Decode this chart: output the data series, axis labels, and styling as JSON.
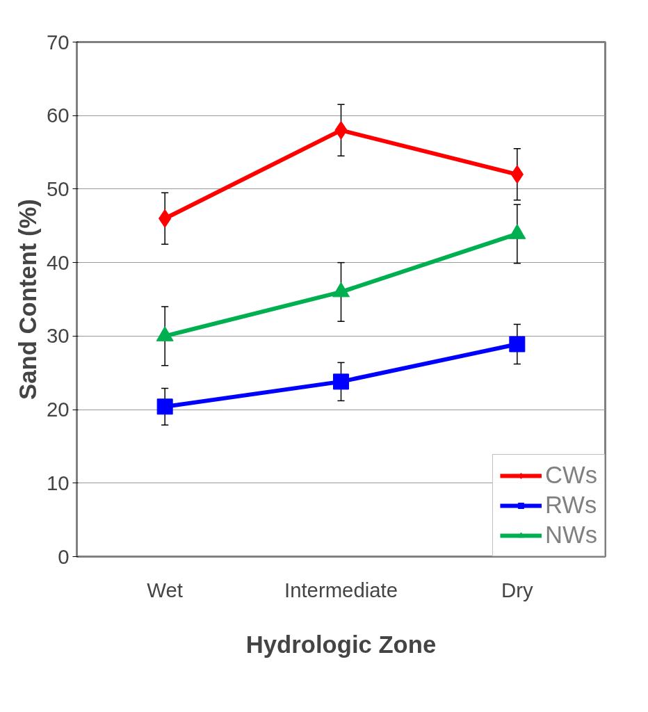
{
  "chart_data": {
    "type": "line",
    "xlabel": "Hydrologic Zone",
    "ylabel": "Sand Content (%)",
    "categories": [
      "Wet",
      "Intermediate",
      "Dry"
    ],
    "series": [
      {
        "name": "CWs",
        "color": "#ff0000",
        "marker": "diamond",
        "values": [
          46.0,
          58.0,
          52.0
        ],
        "errors": [
          3.5,
          3.5,
          3.5
        ]
      },
      {
        "name": "RWs",
        "color": "#0000ff",
        "marker": "square",
        "values": [
          20.4,
          23.8,
          28.9
        ],
        "errors": [
          2.5,
          2.6,
          2.7
        ]
      },
      {
        "name": "NWs",
        "color": "#00b050",
        "marker": "triangle",
        "values": [
          30.0,
          36.0,
          43.9
        ],
        "errors": [
          4,
          4,
          4
        ]
      }
    ],
    "ylim": [
      0,
      70
    ],
    "yticks": [
      0,
      10,
      20,
      30,
      40,
      50,
      60,
      70
    ],
    "grid": "y",
    "legend": "bottom right",
    "line_style": "solid"
  }
}
